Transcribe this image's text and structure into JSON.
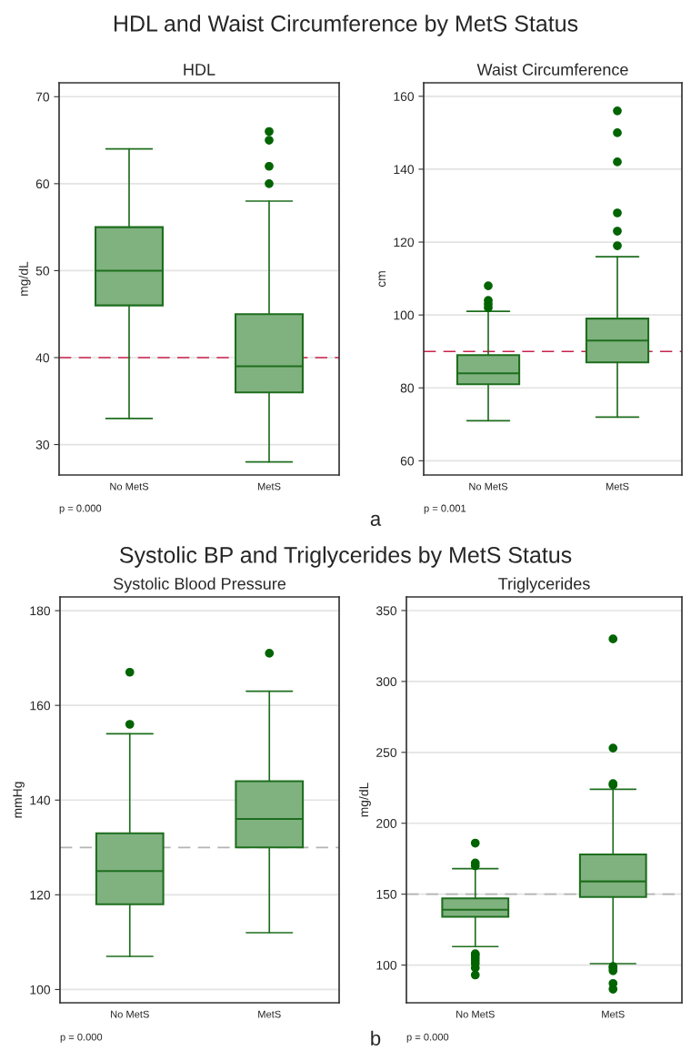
{
  "chart_data": [
    {
      "type": "box",
      "title": "HDL",
      "ylabel": "mg/dL",
      "categories": [
        "No MetS",
        "MetS"
      ],
      "ylim": [
        26.5,
        71.6
      ],
      "yticks": [
        30,
        40,
        50,
        60,
        70
      ],
      "grid": "y",
      "series": [
        {
          "color": "#80b280",
          "boxes": [
            {
              "low": 33,
              "q1": 46,
              "median": 50,
              "q3": 55,
              "high": 64
            },
            {
              "low": 28,
              "q1": 36,
              "median": 39,
              "q3": 45,
              "high": 58,
              "outliers": [
                60,
                62,
                65,
                66
              ]
            }
          ]
        }
      ],
      "ref_lines": [
        {
          "axis": "y",
          "value": 40,
          "color": "#c8234b",
          "line_style": "dashed"
        }
      ],
      "annotations": [
        "p = 0.000",
        "HDL and Waist Circumference by MetS Status"
      ]
    },
    {
      "type": "box",
      "title": "Waist Circumference",
      "ylabel": "cm",
      "categories": [
        "No MetS",
        "MetS"
      ],
      "ylim": [
        56.1,
        163.7
      ],
      "yticks": [
        60,
        80,
        100,
        120,
        140,
        160
      ],
      "grid": "y",
      "series": [
        {
          "color": "#80b280",
          "boxes": [
            {
              "low": 71,
              "q1": 81,
              "median": 84,
              "q3": 89,
              "high": 101,
              "outliers": [
                102,
                103,
                104,
                108
              ]
            },
            {
              "low": 72,
              "q1": 87,
              "median": 93,
              "q3": 99,
              "high": 116,
              "outliers": [
                119,
                123,
                128,
                142,
                150,
                156
              ]
            }
          ]
        }
      ],
      "ref_lines": [
        {
          "axis": "y",
          "value": 90,
          "color": "#c8234b",
          "line_style": "dashed"
        }
      ],
      "annotations": [
        "p = 0.001",
        "a"
      ]
    },
    {
      "type": "box",
      "title": "Systolic Blood Pressure",
      "ylabel": "mmHg",
      "categories": [
        "No MetS",
        "MetS"
      ],
      "ylim": [
        97.2,
        182.9
      ],
      "yticks": [
        100,
        120,
        140,
        160,
        180
      ],
      "grid": "y",
      "series": [
        {
          "color": "#80b280",
          "boxes": [
            {
              "low": 107,
              "q1": 118,
              "median": 125,
              "q3": 133,
              "high": 154,
              "outliers": [
                156,
                167
              ]
            },
            {
              "low": 112,
              "q1": 130,
              "median": 136,
              "q3": 144,
              "high": 163,
              "outliers": [
                171
              ]
            }
          ]
        }
      ],
      "ref_lines": [
        {
          "axis": "y",
          "value": 130,
          "color": "#b4b4b4",
          "line_style": "dashed"
        }
      ],
      "annotations": [
        "p = 0.000",
        "Systolic BP and Triglycerides by MetS Status"
      ]
    },
    {
      "type": "box",
      "title": "Triglycerides",
      "ylabel": "mg/dL",
      "categories": [
        "No MetS",
        "MetS"
      ],
      "ylim": [
        73.4,
        359.6
      ],
      "yticks": [
        100,
        150,
        200,
        250,
        300,
        350
      ],
      "grid": "y",
      "series": [
        {
          "color": "#80b280",
          "boxes": [
            {
              "low": 113,
              "q1": 134,
              "median": 139,
              "q3": 147,
              "high": 168,
              "outliers": [
                93,
                98,
                101,
                103,
                105,
                107,
                108,
                170,
                172,
                186
              ]
            },
            {
              "low": 101,
              "q1": 148,
              "median": 159,
              "q3": 178,
              "high": 224,
              "outliers": [
                83,
                87,
                96,
                98,
                99,
                227,
                228,
                253,
                330
              ]
            }
          ]
        }
      ],
      "ref_lines": [
        {
          "axis": "y",
          "value": 150,
          "color": "#b4b4b4",
          "line_style": "dashed"
        }
      ],
      "annotations": [
        "p = 0.000",
        "b"
      ]
    }
  ]
}
